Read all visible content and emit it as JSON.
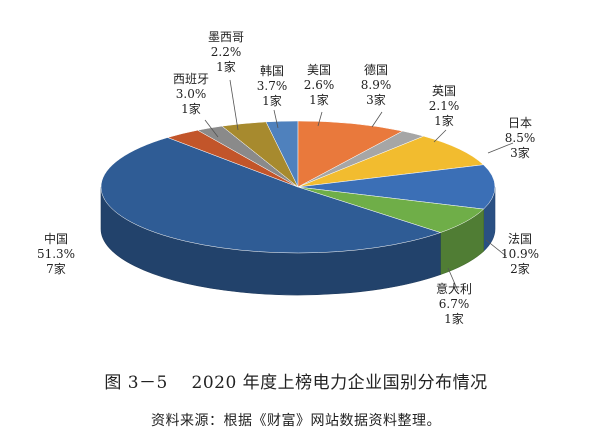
{
  "chart_data": {
    "type": "pie",
    "slices": [
      {
        "name": "美国",
        "percent_label": "2.6%",
        "count_label": "1家",
        "value": 2.6,
        "color": "#4F81BD"
      },
      {
        "name": "德国",
        "percent_label": "8.9%",
        "count_label": "3家",
        "value": 8.9,
        "color": "#E9793C"
      },
      {
        "name": "英国",
        "percent_label": "2.1%",
        "count_label": "1家",
        "value": 2.1,
        "color": "#A6A6A6"
      },
      {
        "name": "日本",
        "percent_label": "8.5%",
        "count_label": "3家",
        "value": 8.5,
        "color": "#F2BC2F"
      },
      {
        "name": "法国",
        "percent_label": "10.9%",
        "count_label": "2家",
        "value": 10.9,
        "color": "#3B6FB6"
      },
      {
        "name": "意大利",
        "percent_label": "6.7%",
        "count_label": "1家",
        "value": 6.7,
        "color": "#6FAE48"
      },
      {
        "name": "中国",
        "percent_label": "51.3%",
        "count_label": "7家",
        "value": 51.3,
        "color": "#2F5C95"
      },
      {
        "name": "西班牙",
        "percent_label": "3.0%",
        "count_label": "1家",
        "value": 3.0,
        "color": "#C2552A"
      },
      {
        "name": "墨西哥",
        "percent_label": "2.2%",
        "count_label": "1家",
        "value": 2.2,
        "color": "#8A8A8A"
      },
      {
        "name": "韩国",
        "percent_label": "3.7%",
        "count_label": "1家",
        "value": 3.7,
        "color": "#A78A2E"
      }
    ]
  },
  "caption": {
    "figure_number": "图 3－5",
    "title": "2020 年度上榜电力企业国别分布情况",
    "source": "资料来源：根据《财富》网站数据资料整理。"
  }
}
